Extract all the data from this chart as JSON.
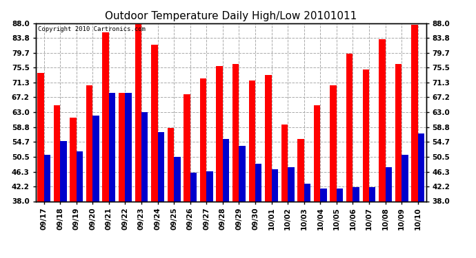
{
  "title": "Outdoor Temperature Daily High/Low 20101011",
  "copyright": "Copyright 2010 Cartronics.com",
  "categories": [
    "09/17",
    "09/18",
    "09/19",
    "09/20",
    "09/21",
    "09/22",
    "09/23",
    "09/24",
    "09/25",
    "09/26",
    "09/27",
    "09/28",
    "09/29",
    "09/30",
    "10/01",
    "10/02",
    "10/03",
    "10/04",
    "10/05",
    "10/06",
    "10/07",
    "10/08",
    "10/09",
    "10/10"
  ],
  "highs": [
    74.0,
    65.0,
    61.5,
    70.5,
    85.5,
    68.5,
    91.0,
    82.0,
    58.5,
    68.0,
    72.5,
    76.0,
    76.5,
    72.0,
    73.5,
    59.5,
    55.5,
    65.0,
    70.5,
    79.5,
    75.0,
    83.5,
    76.5,
    87.5
  ],
  "lows": [
    51.0,
    55.0,
    52.0,
    62.0,
    68.5,
    68.5,
    63.0,
    57.5,
    50.5,
    46.0,
    46.5,
    55.5,
    53.5,
    48.5,
    47.0,
    47.5,
    43.0,
    41.5,
    41.5,
    42.0,
    42.0,
    47.5,
    51.0,
    57.0
  ],
  "bar_width": 0.4,
  "high_color": "#ff0000",
  "low_color": "#0000cc",
  "bg_color": "#ffffff",
  "grid_color": "#aaaaaa",
  "yticks": [
    38.0,
    42.2,
    46.3,
    50.5,
    54.7,
    58.8,
    63.0,
    67.2,
    71.3,
    75.5,
    79.7,
    83.8,
    88.0
  ],
  "ymin": 38.0,
  "ymax": 88.0,
  "title_fontsize": 11,
  "tick_fontsize": 7.5,
  "copyright_fontsize": 6.5
}
